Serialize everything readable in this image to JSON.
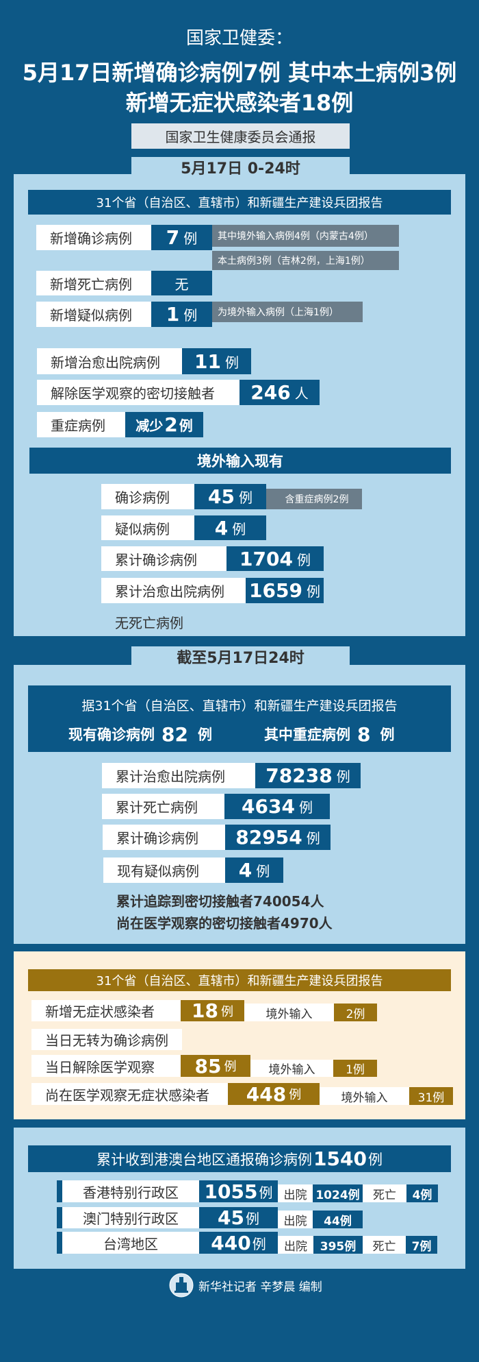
{
  "header": {
    "source": "国家卫健委：",
    "headline1": "5月17日新增确诊病例7例 其中本土病例3例",
    "headline2": "新增无症状感染者18例",
    "notice": "国家卫生健康委员会通报"
  },
  "daily": {
    "tab": "5月17日 0-24时",
    "report": "31个省（自治区、直辖市）和新疆生产建设兵团报告",
    "rows": [
      {
        "label": "新增确诊病例",
        "value": "7",
        "unit": "例",
        "notes": [
          "其中境外输入病例4例（内蒙古4例）",
          "本土病例3例（吉林2例，上海1例）"
        ]
      },
      {
        "label": "新增死亡病例",
        "value": "无"
      },
      {
        "label": "新增疑似病例",
        "value": "1",
        "unit": "例",
        "notes": [
          "为境外输入病例（上海1例）"
        ]
      },
      {
        "label": "新增治愈出院病例",
        "value": "11",
        "unit": "例"
      },
      {
        "label": "解除医学观察的密切接触者",
        "value": "246",
        "unit": "人"
      },
      {
        "label": "重症病例",
        "prefix": "减少",
        "value": "2",
        "unit": "例"
      }
    ],
    "imported_title": "境外输入现有",
    "imported": [
      {
        "label": "确诊病例",
        "value": "45",
        "unit": "例",
        "note": "含重症病例2例"
      },
      {
        "label": "疑似病例",
        "value": "4",
        "unit": "例"
      },
      {
        "label": "累计确诊病例",
        "value": "1704",
        "unit": "例"
      },
      {
        "label": "累计治愈出院病例",
        "value": "1659",
        "unit": "例"
      }
    ],
    "no_death": "无死亡病例"
  },
  "cumulative": {
    "tab": "截至5月17日24时",
    "report": "据31个省（自治区、直辖市）和新疆生产建设兵团报告",
    "current_label": "现有确诊病例",
    "current_value": "82",
    "severe_label": "其中重症病例",
    "severe_value": "8",
    "unit": "例",
    "rows": [
      {
        "label": "累计治愈出院病例",
        "value": "78238",
        "unit": "例"
      },
      {
        "label": "累计死亡病例",
        "value": "4634",
        "unit": "例"
      },
      {
        "label": "累计确诊病例",
        "value": "82954",
        "unit": "例"
      },
      {
        "label": "现有疑似病例",
        "value": "4",
        "unit": "例"
      }
    ],
    "contacts1": "累计追踪到密切接触者740054人",
    "contacts2": "尚在医学观察的密切接触者4970人"
  },
  "asymptomatic": {
    "report": "31个省（自治区、直辖市）和新疆生产建设兵团报告",
    "imported_label": "境外输入",
    "rows": [
      {
        "label": "新增无症状感染者",
        "value": "18",
        "unit": "例",
        "imported": "2例"
      },
      {
        "label": "当日无转为确诊病例"
      },
      {
        "label": "当日解除医学观察",
        "value": "85",
        "unit": "例",
        "imported": "1例"
      },
      {
        "label": "尚在医学观察无症状感染者",
        "value": "448",
        "unit": "例",
        "imported": "31例"
      }
    ]
  },
  "hmt": {
    "title": "累计收到港澳台地区通报确诊病例",
    "total": "1540",
    "unit": "例",
    "discharged_label": "出院",
    "death_label": "死亡",
    "rows": [
      {
        "label": "香港特别行政区",
        "value": "1055",
        "discharged": "1024例",
        "deaths": "4例"
      },
      {
        "label": "澳门特别行政区",
        "value": "45",
        "discharged": "44例"
      },
      {
        "label": "台湾地区",
        "value": "440",
        "discharged": "395例",
        "deaths": "7例"
      }
    ]
  },
  "footer": {
    "credit": "新华社记者 辛梦晨 编制",
    "logo_text": "XINHUA"
  },
  "colors": {
    "background": "#0d5886",
    "panel": "#b4d8ec",
    "box": "#0b5786",
    "note": "#6b7d8a",
    "cream": "#fdf0dc",
    "gold": "#9a7210"
  }
}
